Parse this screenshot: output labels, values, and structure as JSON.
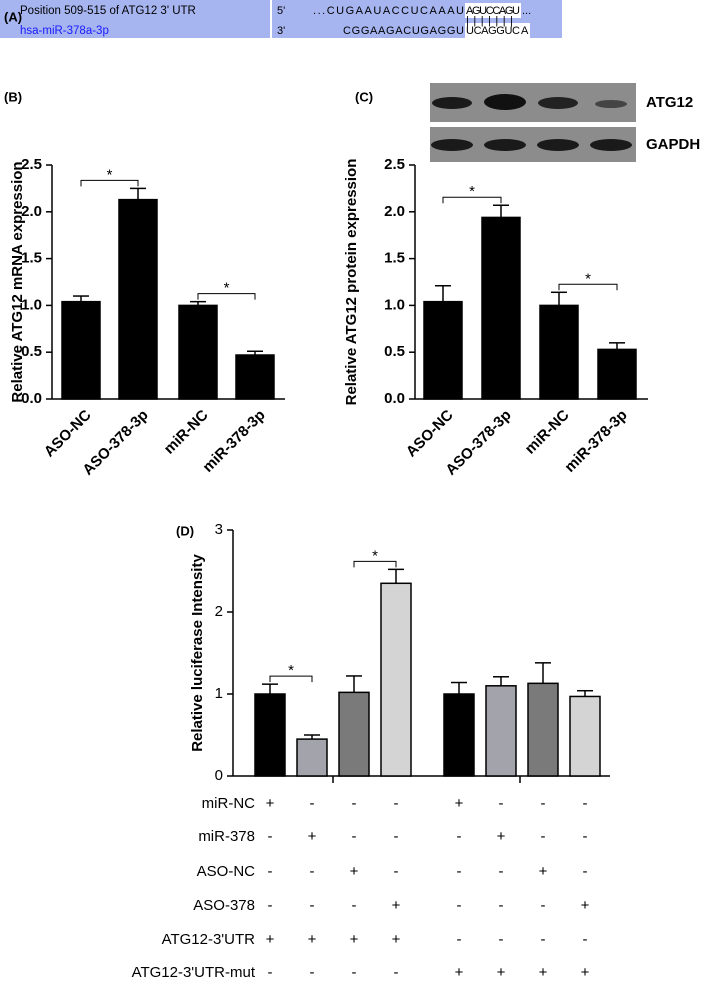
{
  "panel_a": {
    "label": "(A)",
    "target_name": "Position 509-515 of ATG12 3' UTR",
    "mirna_name": "hsa-miR-378a-3p",
    "target_end": "5'",
    "target_seq": "...CUGAAUACCUCAAAU",
    "target_site": "AGUCCAGU",
    "target_tail": "...",
    "pairing": "|||||||",
    "mirna_end": "3'",
    "mirna_seq": "CGGAAGACUGAGGU",
    "mirna_site": "UCAGGUC",
    "mirna_tail": "A"
  },
  "chart_data": [
    {
      "type": "bar",
      "label": "(B)",
      "ylabel": "Relative ATG12 mRNA expression",
      "categories": [
        "ASO-NC",
        "ASO-378-3p",
        "miR-NC",
        "miR-378-3p"
      ],
      "values": [
        1.04,
        2.13,
        1.0,
        0.47
      ],
      "errors": [
        0.06,
        0.12,
        0.04,
        0.04
      ],
      "color": "#000000",
      "ylim": [
        0,
        2.5
      ],
      "yticks": [
        {
          "value": 0,
          "label": "0.0"
        },
        0.5,
        {
          "value": 1,
          "label": "1.0"
        },
        1.5,
        {
          "value": 2,
          "label": "2.0"
        },
        2.5
      ],
      "brackets": [
        {
          "between": [
            0,
            1
          ],
          "label": "*"
        },
        {
          "between": [
            2,
            3
          ],
          "label": "*"
        }
      ]
    },
    {
      "type": "bar",
      "label": "(C)",
      "ylabel": "Relative ATG12 protein expression",
      "blot_labels": [
        "ATG12",
        "GAPDH"
      ],
      "categories": [
        "ASO-NC",
        "ASO-378-3p",
        "miR-NC",
        "miR-378-3p"
      ],
      "values": [
        1.04,
        1.94,
        1.0,
        0.53
      ],
      "errors": [
        0.17,
        0.13,
        0.14,
        0.07
      ],
      "color": "#000000",
      "ylim": [
        0,
        2.5
      ],
      "yticks": [
        {
          "value": 0,
          "label": "0.0"
        },
        0.5,
        {
          "value": 1,
          "label": "1.0"
        },
        1.5,
        {
          "value": 2,
          "label": "2.0"
        },
        2.5
      ],
      "brackets": [
        {
          "between": [
            0,
            1
          ],
          "label": "*"
        },
        {
          "between": [
            2,
            3
          ],
          "label": "*"
        }
      ]
    },
    {
      "type": "bar",
      "label": "(D)",
      "ylabel": "Relative luciferase Intensity",
      "categories": [
        null,
        null,
        null,
        null,
        null,
        null,
        null,
        null
      ],
      "values": [
        1.0,
        0.45,
        1.02,
        2.35,
        1.0,
        1.1,
        1.13,
        0.97
      ],
      "errors": [
        0.12,
        0.05,
        0.2,
        0.17,
        0.14,
        0.11,
        0.25,
        0.07
      ],
      "colors": [
        "#000000",
        "#a3a3ab",
        "#7a7a7a",
        "#d4d4d4",
        "#000000",
        "#a3a3ab",
        "#7a7a7a",
        "#d4d4d4"
      ],
      "ylim": [
        0,
        3
      ],
      "yticks": [
        0,
        1,
        2,
        3
      ],
      "brackets": [
        {
          "between": [
            0,
            1
          ],
          "label": "*"
        },
        {
          "between": [
            2,
            3
          ],
          "label": "*"
        }
      ],
      "rows": [
        {
          "name": "miR-NC",
          "marks": [
            "+",
            "-",
            "-",
            "-",
            "+",
            "-",
            "-",
            "-"
          ]
        },
        {
          "name": "miR-378",
          "marks": [
            "-",
            "+",
            "-",
            "-",
            "-",
            "+",
            "-",
            "-"
          ]
        },
        {
          "name": "ASO-NC",
          "marks": [
            "-",
            "-",
            "+",
            "-",
            "-",
            "-",
            "+",
            "-"
          ]
        },
        {
          "name": "ASO-378",
          "marks": [
            "-",
            "-",
            "-",
            "+",
            "-",
            "-",
            "-",
            "+"
          ]
        },
        {
          "name": "ATG12-3'UTR",
          "marks": [
            "+",
            "+",
            "+",
            "+",
            "-",
            "-",
            "-",
            "-"
          ]
        },
        {
          "name": "ATG12-3'UTR-mut",
          "marks": [
            "-",
            "-",
            "-",
            "-",
            "+",
            "+",
            "+",
            "+"
          ]
        }
      ]
    }
  ]
}
